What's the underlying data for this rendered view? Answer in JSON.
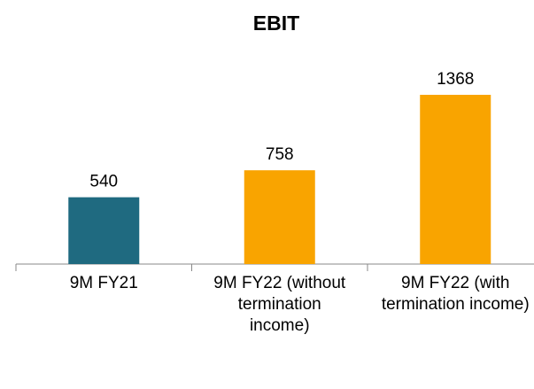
{
  "chart_data": {
    "type": "bar",
    "title": "EBIT",
    "categories": [
      "9M FY21",
      "9M FY22 (without termination income)",
      "9M FY22 (with termination income)"
    ],
    "values": [
      540,
      758,
      1368
    ],
    "colors": [
      "#1f6a80",
      "#f9a400",
      "#f9a400"
    ]
  }
}
